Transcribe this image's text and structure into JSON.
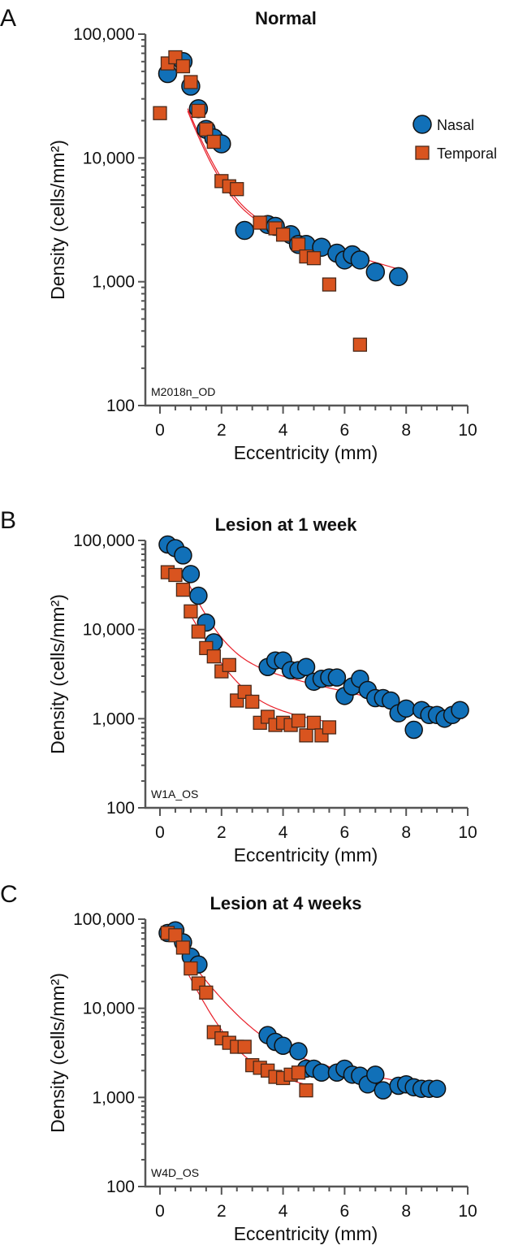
{
  "colors": {
    "nasal": "#1170b8",
    "temporal": "#d9541f",
    "fit": "#e8202a",
    "axis": "#555555"
  },
  "legend": {
    "nasal": "Nasal",
    "temporal": "Temporal"
  },
  "chart_data": [
    {
      "panel": "A",
      "type": "scatter",
      "title": "Normal",
      "sample_id": "M2018n_OD",
      "xlabel": "Eccentricity (mm)",
      "ylabel": "Density (cells/mm²)",
      "xlim": [
        0,
        10
      ],
      "ylim": [
        100,
        100000
      ],
      "yscale": "log",
      "xticks": [
        "0",
        "2",
        "4",
        "6",
        "8",
        "10"
      ],
      "yticks": [
        "100",
        "1,000",
        "10,000",
        "100,000"
      ],
      "legend_position": "top-right",
      "series": [
        {
          "name": "Nasal",
          "marker": "circle",
          "points": [
            [
              0.25,
              48000
            ],
            [
              0.75,
              60000
            ],
            [
              1.0,
              38000
            ],
            [
              1.25,
              25000
            ],
            [
              1.5,
              17000
            ],
            [
              1.75,
              14500
            ],
            [
              2.0,
              13000
            ],
            [
              2.75,
              2600
            ],
            [
              3.5,
              2900
            ],
            [
              3.75,
              2800
            ],
            [
              4.25,
              2400
            ],
            [
              4.5,
              2000
            ],
            [
              4.75,
              2000
            ],
            [
              5.25,
              1900
            ],
            [
              5.75,
              1700
            ],
            [
              6.0,
              1500
            ],
            [
              6.25,
              1650
            ],
            [
              6.5,
              1500
            ],
            [
              7.0,
              1200
            ],
            [
              7.75,
              1100
            ]
          ],
          "fit": {
            "a": 90000,
            "b": 0.62,
            "c": 4600,
            "d": 6,
            "xmax": 7.75
          }
        },
        {
          "name": "Temporal",
          "marker": "square",
          "points": [
            [
              0,
              23000
            ],
            [
              0.25,
              58000
            ],
            [
              0.5,
              65000
            ],
            [
              0.75,
              55000
            ],
            [
              1.0,
              41000
            ],
            [
              1.25,
              24000
            ],
            [
              1.5,
              17000
            ],
            [
              1.75,
              13500
            ],
            [
              2.0,
              6500
            ],
            [
              2.25,
              5900
            ],
            [
              2.5,
              5600
            ],
            [
              3.25,
              3000
            ],
            [
              3.75,
              2700
            ],
            [
              4.0,
              2400
            ],
            [
              4.5,
              2000
            ],
            [
              4.75,
              1600
            ],
            [
              5.0,
              1550
            ],
            [
              5.5,
              950
            ],
            [
              6.5,
              310
            ]
          ],
          "fit": {
            "a": 90000,
            "b": 0.6,
            "c": 4500,
            "d": 6,
            "xmax": 4.5
          }
        }
      ]
    },
    {
      "panel": "B",
      "type": "scatter",
      "title": "Lesion at 1 week",
      "sample_id": "W1A_OS",
      "xlabel": "Eccentricity (mm)",
      "ylabel": "Density (cells/mm²)",
      "xlim": [
        0,
        10
      ],
      "ylim": [
        100,
        100000
      ],
      "yscale": "log",
      "xticks": [
        "0",
        "2",
        "4",
        "6",
        "8",
        "10"
      ],
      "yticks": [
        "100",
        "1,000",
        "10,000",
        "100,000"
      ],
      "series": [
        {
          "name": "Nasal",
          "marker": "circle",
          "points": [
            [
              0.25,
              90000
            ],
            [
              0.5,
              82000
            ],
            [
              0.75,
              68000
            ],
            [
              1.0,
              42000
            ],
            [
              1.25,
              24000
            ],
            [
              1.5,
              12000
            ],
            [
              1.75,
              7200
            ],
            [
              3.5,
              3800
            ],
            [
              3.75,
              4500
            ],
            [
              4.0,
              4500
            ],
            [
              4.25,
              3500
            ],
            [
              4.5,
              3500
            ],
            [
              4.75,
              3800
            ],
            [
              5.0,
              2600
            ],
            [
              5.25,
              2800
            ],
            [
              5.5,
              2900
            ],
            [
              5.75,
              2900
            ],
            [
              6.0,
              1800
            ],
            [
              6.25,
              2300
            ],
            [
              6.5,
              2800
            ],
            [
              6.75,
              2100
            ],
            [
              7.0,
              1700
            ],
            [
              7.25,
              1700
            ],
            [
              7.5,
              1600
            ],
            [
              7.75,
              1150
            ],
            [
              8.0,
              1300
            ],
            [
              8.25,
              750
            ],
            [
              8.5,
              1250
            ],
            [
              8.75,
              1100
            ],
            [
              9.0,
              1100
            ],
            [
              9.25,
              1000
            ],
            [
              9.5,
              1100
            ],
            [
              9.75,
              1250
            ]
          ],
          "fit": {
            "a": 150000,
            "b": 0.55,
            "c": 6000,
            "d": 5.5,
            "xmax": 9.9
          }
        },
        {
          "name": "Temporal",
          "marker": "square",
          "points": [
            [
              0.25,
              44000
            ],
            [
              0.5,
              41000
            ],
            [
              0.75,
              28000
            ],
            [
              1.0,
              16000
            ],
            [
              1.25,
              9500
            ],
            [
              1.5,
              6200
            ],
            [
              1.75,
              5000
            ],
            [
              2.0,
              3400
            ],
            [
              2.25,
              4000
            ],
            [
              2.5,
              1600
            ],
            [
              2.75,
              2000
            ],
            [
              3.0,
              1550
            ],
            [
              3.25,
              900
            ],
            [
              3.5,
              1050
            ],
            [
              3.75,
              850
            ],
            [
              4.0,
              900
            ],
            [
              4.25,
              850
            ],
            [
              4.5,
              950
            ],
            [
              4.75,
              650
            ],
            [
              5.0,
              900
            ],
            [
              5.25,
              650
            ],
            [
              5.5,
              800
            ]
          ],
          "fit": {
            "a": 60000,
            "b": 0.65,
            "c": 1800,
            "d": 8,
            "xmax": 5.5
          }
        }
      ]
    },
    {
      "panel": "C",
      "type": "scatter",
      "title": "Lesion at 4 weeks",
      "sample_id": "W4D_OS",
      "xlabel": "Eccentricity (mm)",
      "ylabel": "Density (cells/mm²)",
      "xlim": [
        0,
        10
      ],
      "ylim": [
        100,
        100000
      ],
      "yscale": "log",
      "xticks": [
        "0",
        "2",
        "4",
        "6",
        "8",
        "10"
      ],
      "yticks": [
        "100",
        "1,000",
        "10,000",
        "100,000"
      ],
      "series": [
        {
          "name": "Nasal",
          "marker": "circle",
          "points": [
            [
              0.25,
              70000
            ],
            [
              0.5,
              75000
            ],
            [
              0.75,
              55000
            ],
            [
              1.0,
              38000
            ],
            [
              1.25,
              31000
            ],
            [
              3.5,
              5000
            ],
            [
              3.75,
              4200
            ],
            [
              4.0,
              3800
            ],
            [
              4.5,
              3300
            ],
            [
              4.75,
              2100
            ],
            [
              5.0,
              2100
            ],
            [
              5.25,
              1900
            ],
            [
              5.75,
              1900
            ],
            [
              6.0,
              2100
            ],
            [
              6.25,
              1800
            ],
            [
              6.5,
              1750
            ],
            [
              6.75,
              1400
            ],
            [
              7.0,
              1800
            ],
            [
              7.25,
              1200
            ],
            [
              7.75,
              1350
            ],
            [
              8.0,
              1400
            ],
            [
              8.25,
              1300
            ],
            [
              8.5,
              1250
            ],
            [
              8.75,
              1250
            ],
            [
              9.0,
              1250
            ]
          ],
          "fit": {
            "a": 90000,
            "b": 0.9,
            "c": 4000,
            "d": 8,
            "xmax": 9.0
          }
        },
        {
          "name": "Temporal",
          "marker": "square",
          "points": [
            [
              0.25,
              70000
            ],
            [
              0.5,
              66000
            ],
            [
              0.75,
              48000
            ],
            [
              1.0,
              28000
            ],
            [
              1.25,
              19000
            ],
            [
              1.5,
              15000
            ],
            [
              1.75,
              5400
            ],
            [
              2.0,
              4600
            ],
            [
              2.25,
              4100
            ],
            [
              2.5,
              3700
            ],
            [
              2.75,
              3700
            ],
            [
              3.0,
              2300
            ],
            [
              3.25,
              2150
            ],
            [
              3.5,
              2000
            ],
            [
              3.75,
              1700
            ],
            [
              4.0,
              1650
            ],
            [
              4.25,
              1800
            ],
            [
              4.5,
              1900
            ],
            [
              4.75,
              1200
            ]
          ],
          "fit": {
            "a": 100000,
            "b": 0.6,
            "c": 3000,
            "d": 6,
            "xmax": 4.8
          }
        }
      ]
    }
  ]
}
